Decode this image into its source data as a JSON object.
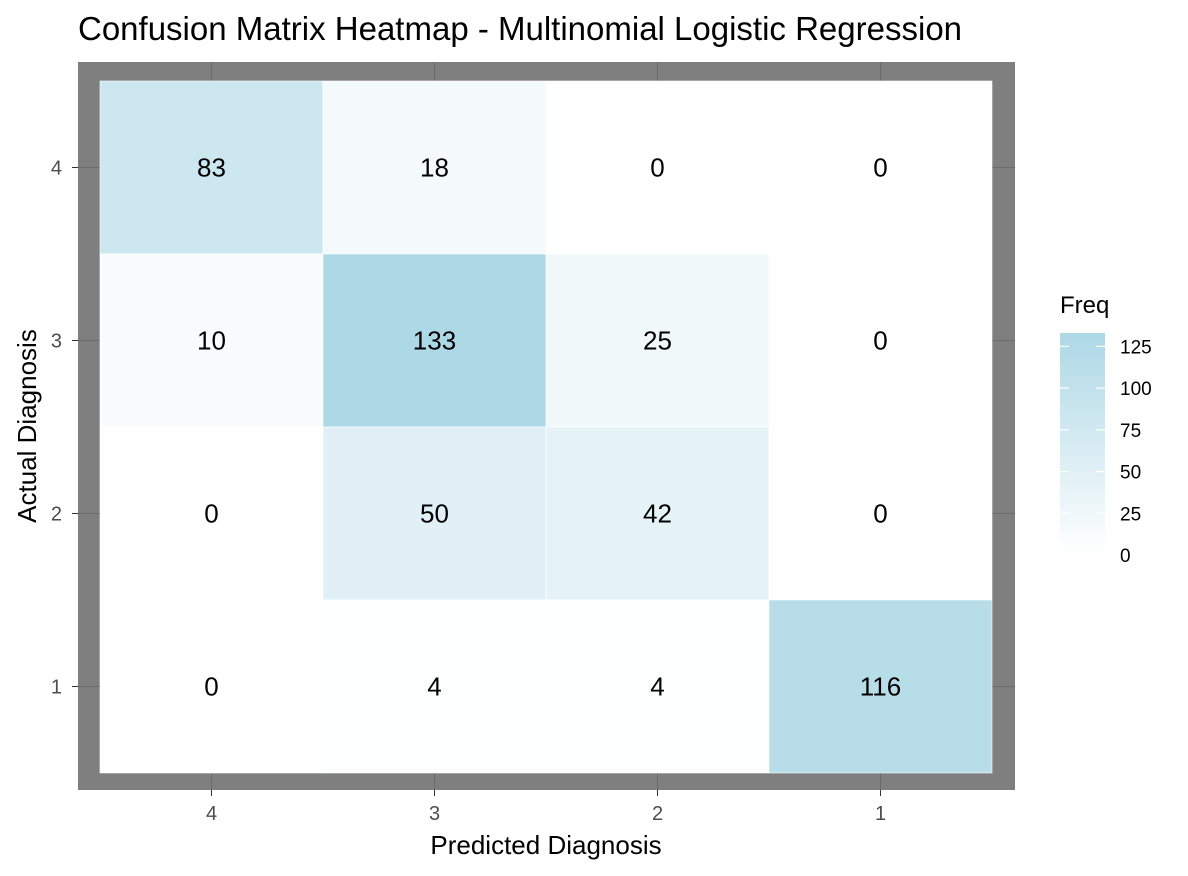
{
  "chart_data": {
    "type": "heatmap",
    "title": "Confusion Matrix Heatmap - Multinomial Logistic Regression",
    "xlabel": "Predicted Diagnosis",
    "ylabel": "Actual Diagnosis",
    "x_categories": [
      "4",
      "3",
      "2",
      "1"
    ],
    "y_categories": [
      "4",
      "3",
      "2",
      "1"
    ],
    "values": [
      [
        83,
        18,
        0,
        0
      ],
      [
        10,
        133,
        25,
        0
      ],
      [
        0,
        50,
        42,
        0
      ],
      [
        0,
        4,
        4,
        116
      ]
    ],
    "legend": {
      "title": "Freq",
      "ticks": [
        0,
        25,
        50,
        75,
        100,
        125
      ],
      "range": [
        0,
        133
      ],
      "placement": "right"
    },
    "colors": {
      "low": "#ffffff",
      "high": "#add8e6",
      "panel_background": "#7f7f7f",
      "grid": "#6b6b6b"
    }
  }
}
